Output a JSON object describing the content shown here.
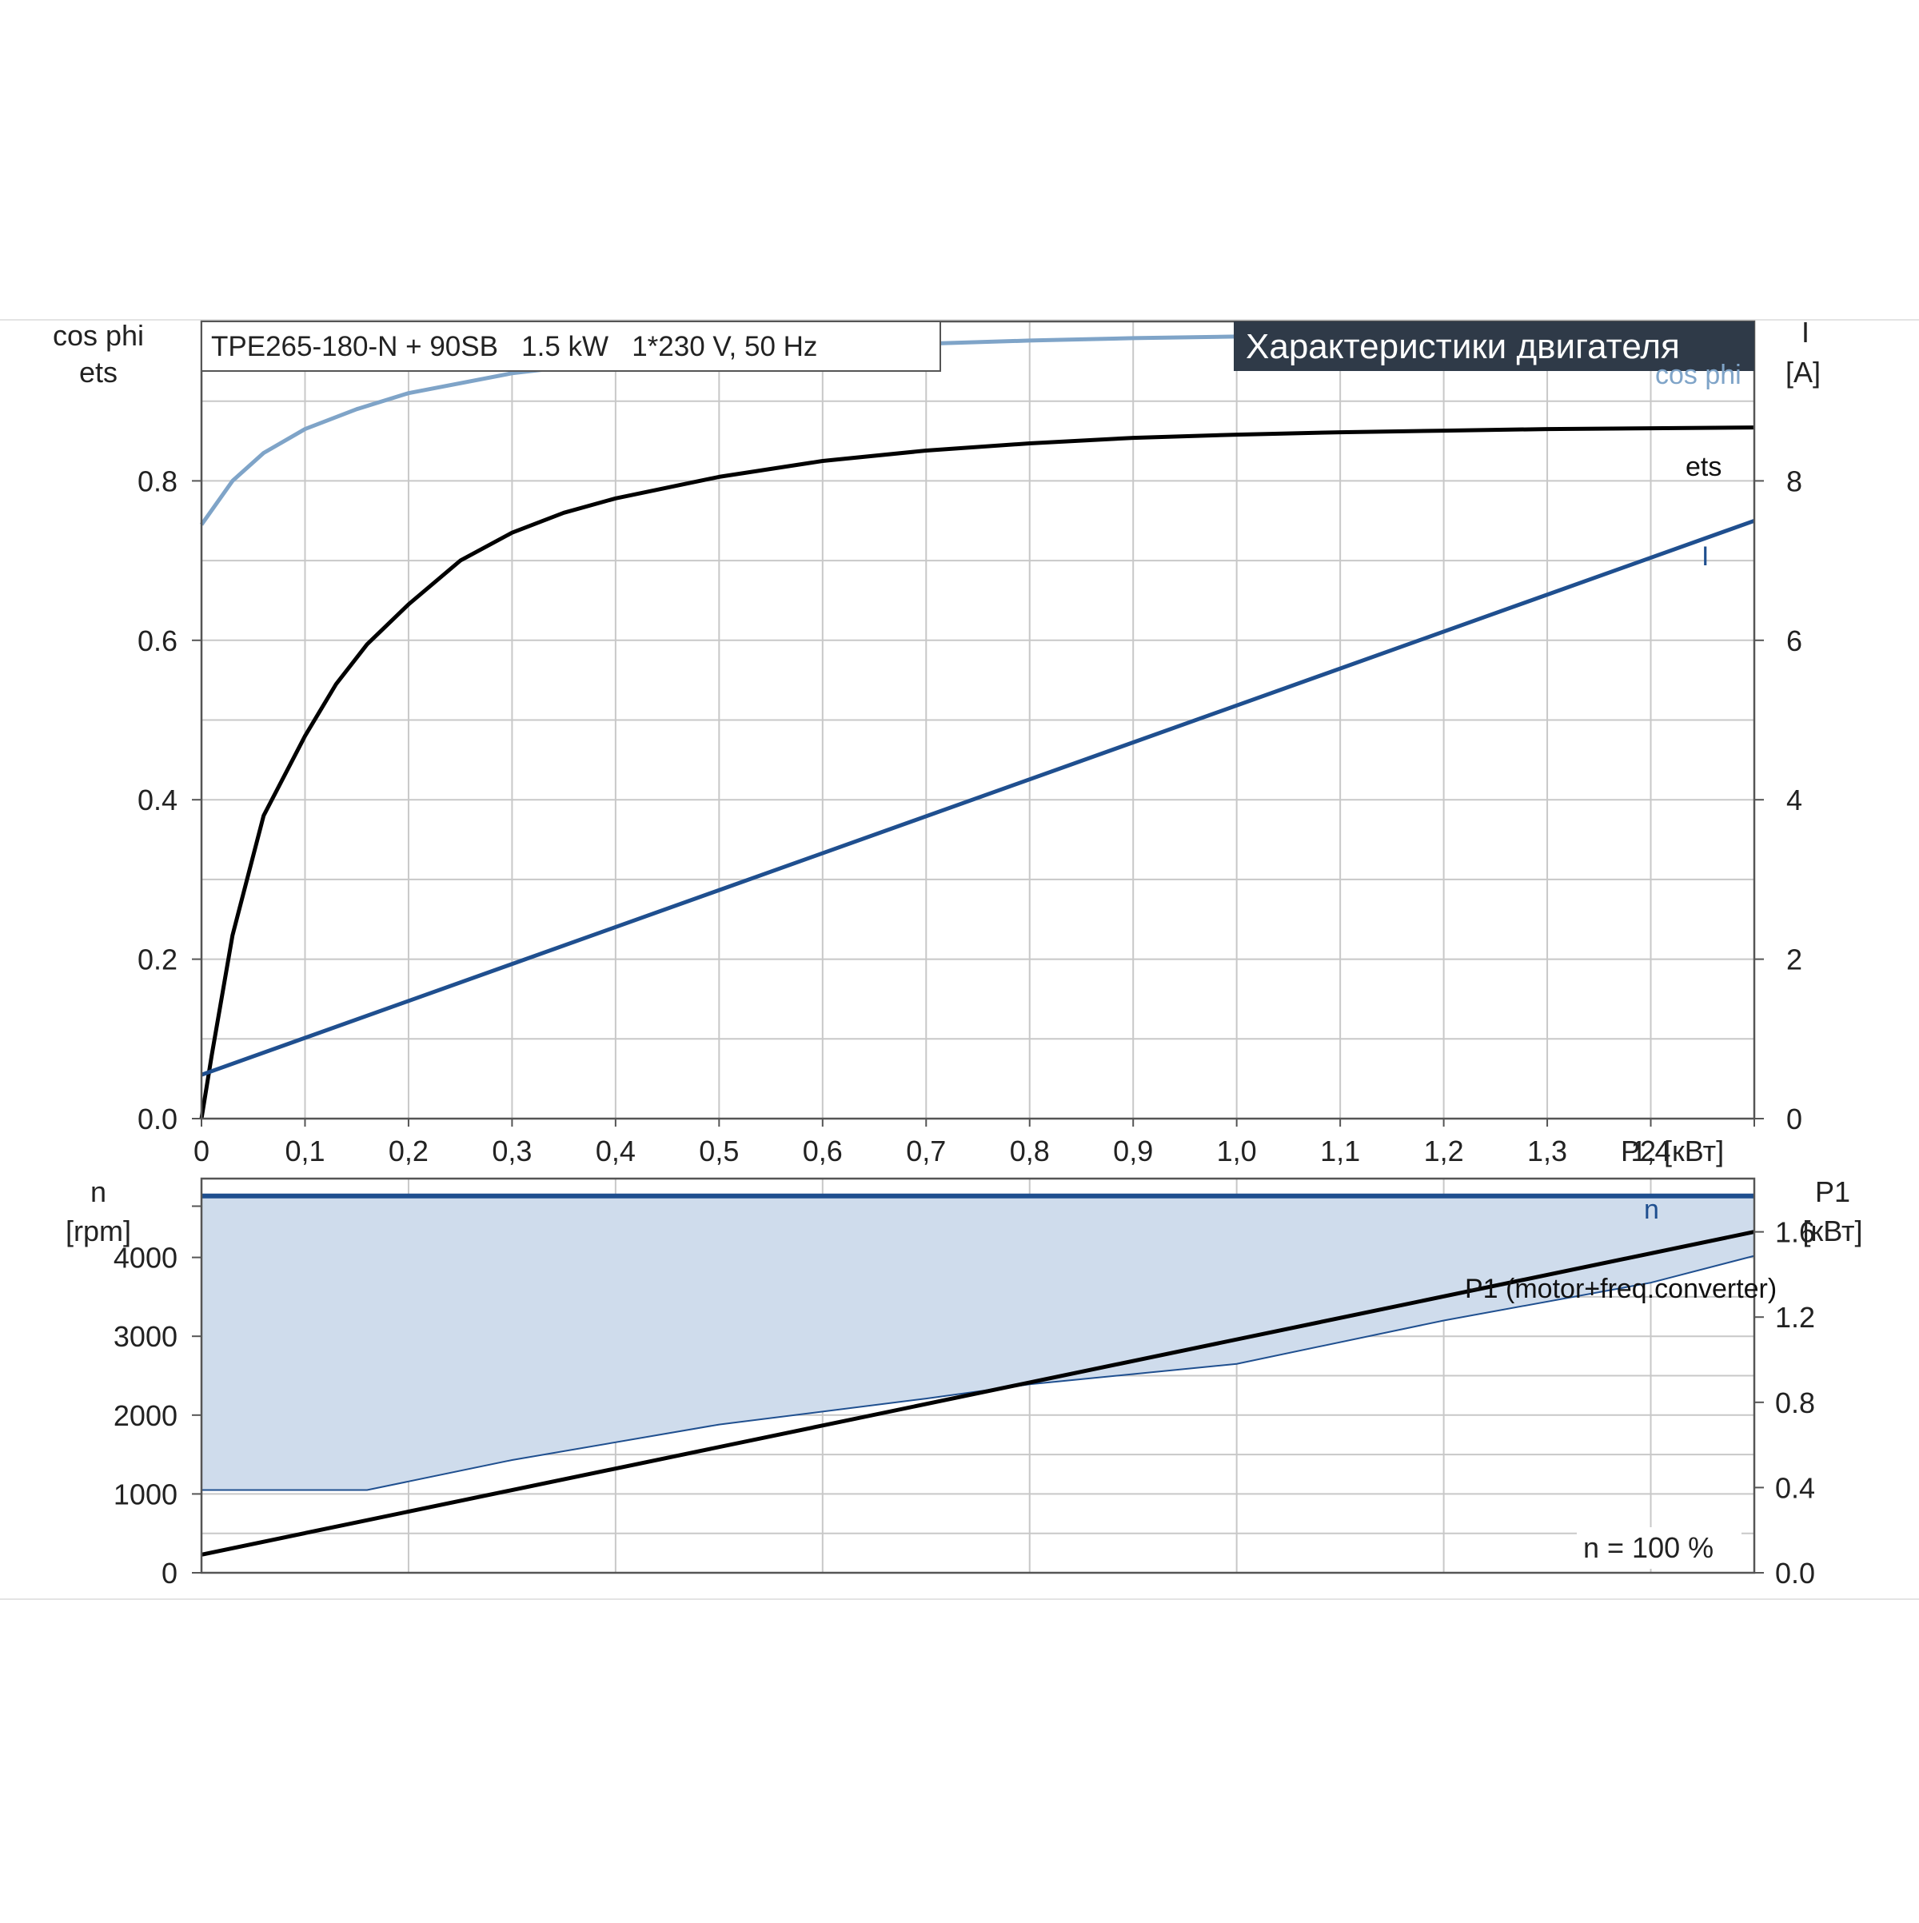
{
  "subtitle": "TPE265-180-N + 90SB   1.5 kW   1*230 V, 50 Hz",
  "title": "Характеристики двигателя",
  "colors": {
    "cos_phi": "#7fa4c8",
    "ets": "#000000",
    "current": "#1f4f8f",
    "speed": "#1f4f8f",
    "p1": "#000000",
    "fill": "#cfdcec",
    "grid": "#c8c8c8",
    "title_bg": "#2f3a48"
  },
  "chart_data": [
    {
      "type": "line",
      "id": "upper",
      "x_ticks": [
        "0",
        "0,1",
        "0,2",
        "0,3",
        "0,4",
        "0,5",
        "0,6",
        "0,7",
        "0,8",
        "0,9",
        "1,0",
        "1,1",
        "1,2",
        "1,3",
        "1,4"
      ],
      "xlabel": "P2 [кВт]",
      "xlim": [
        0,
        1.5
      ],
      "ylabel_left": [
        "cos phi",
        "ets"
      ],
      "ylim_left": [
        0,
        1.0
      ],
      "y_ticks_left": [
        "0.0",
        "0.2",
        "0.4",
        "0.6",
        "0.8"
      ],
      "ylabel_right": [
        "I",
        "[A]"
      ],
      "ylim_right": [
        0,
        10
      ],
      "y_ticks_right": [
        "0",
        "2",
        "4",
        "6",
        "8"
      ],
      "grid": true,
      "series": [
        {
          "name": "cos phi",
          "axis": "left",
          "x": [
            0,
            0.03,
            0.06,
            0.1,
            0.15,
            0.2,
            0.3,
            0.4,
            0.5,
            0.6,
            0.7,
            0.8,
            0.9,
            1.0,
            1.1,
            1.2,
            1.3,
            1.4,
            1.5
          ],
          "y": [
            0.745,
            0.8,
            0.835,
            0.865,
            0.89,
            0.91,
            0.935,
            0.95,
            0.96,
            0.967,
            0.972,
            0.976,
            0.979,
            0.981,
            0.983,
            0.984,
            0.985,
            0.986,
            0.987
          ]
        },
        {
          "name": "ets",
          "axis": "left",
          "x": [
            0,
            0.01,
            0.03,
            0.06,
            0.1,
            0.13,
            0.16,
            0.2,
            0.25,
            0.3,
            0.35,
            0.4,
            0.5,
            0.6,
            0.7,
            0.8,
            0.9,
            1.0,
            1.1,
            1.2,
            1.3,
            1.4,
            1.5
          ],
          "y": [
            0.0,
            0.08,
            0.23,
            0.38,
            0.48,
            0.545,
            0.595,
            0.645,
            0.7,
            0.735,
            0.76,
            0.778,
            0.805,
            0.825,
            0.838,
            0.847,
            0.854,
            0.858,
            0.861,
            0.863,
            0.865,
            0.866,
            0.867
          ]
        },
        {
          "name": "I",
          "axis": "right",
          "x": [
            0,
            1.5
          ],
          "y": [
            0.55,
            7.5
          ]
        }
      ]
    },
    {
      "type": "area",
      "id": "lower",
      "xlim": [
        0,
        1.5
      ],
      "ylabel_left": [
        "n",
        "[rpm]"
      ],
      "ylim_left": [
        0,
        5000
      ],
      "y_ticks_left": [
        "0",
        "1000",
        "2000",
        "3000",
        "4000"
      ],
      "ylabel_right": [
        "P1",
        "[кВт]"
      ],
      "ylim_right": [
        0,
        1.85
      ],
      "y_ticks_right": [
        "0.0",
        "0.4",
        "0.8",
        "1.2",
        "1.6"
      ],
      "grid": true,
      "annotation": "n = 100 %",
      "series": [
        {
          "name": "n",
          "axis": "left",
          "x": [
            0,
            1.5
          ],
          "y": [
            4780,
            4780
          ]
        },
        {
          "name": "",
          "role": "min-speed",
          "axis": "left",
          "x": [
            0,
            0.16,
            0.3,
            0.5,
            0.7,
            0.8,
            0.9,
            1.0,
            1.2,
            1.4,
            1.5
          ],
          "y": [
            1050,
            1050,
            1430,
            1880,
            2210,
            2390,
            2520,
            2650,
            3200,
            3680,
            4020
          ]
        },
        {
          "name": "P1 (motor+freq.converter)",
          "axis": "right",
          "x": [
            0,
            1.5
          ],
          "y": [
            0.085,
            1.6
          ]
        }
      ]
    }
  ]
}
